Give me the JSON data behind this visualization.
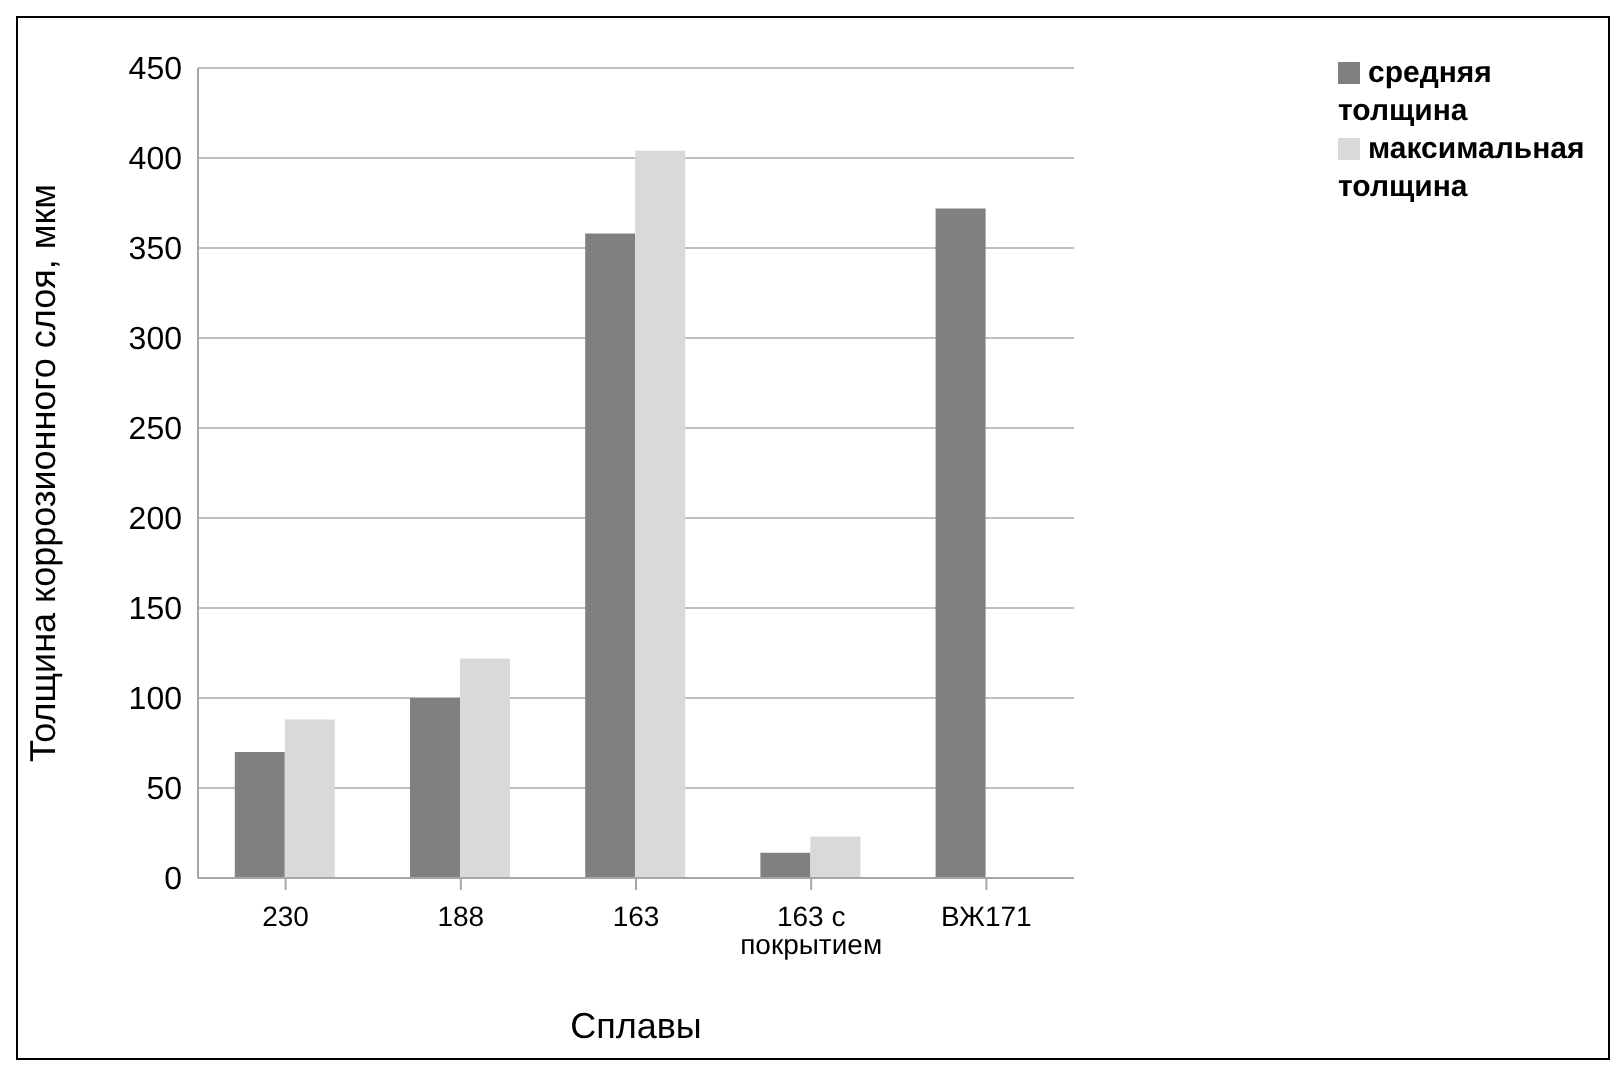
{
  "chart_data": {
    "type": "bar",
    "xlabel": "Сплавы",
    "ylabel": "Толщина коррозионного слоя, мкм",
    "categories": [
      "230",
      "188",
      "163",
      "163 с покрытием",
      "ВЖ171"
    ],
    "series": [
      {
        "name": "средняя толщина",
        "color": "#808080",
        "values": [
          70,
          100,
          358,
          14,
          372
        ]
      },
      {
        "name": "максимальная толщина",
        "color": "#d9d9d9",
        "values": [
          88,
          122,
          404,
          23,
          null
        ]
      }
    ],
    "ylim": [
      0,
      450
    ],
    "yticks": [
      0,
      50,
      100,
      150,
      200,
      250,
      300,
      350,
      400,
      450
    ],
    "grid": "y",
    "legend": "top right"
  }
}
